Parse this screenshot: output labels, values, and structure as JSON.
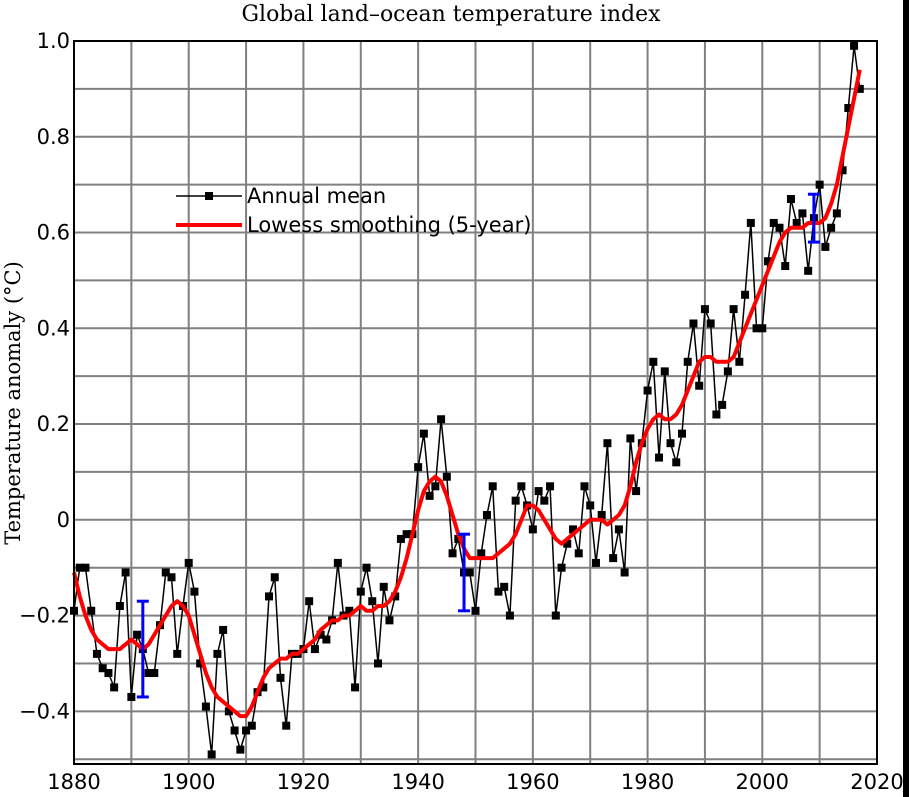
{
  "chart_data": {
    "type": "line",
    "title": "Global land–ocean temperature index",
    "xlabel": "",
    "ylabel": "Temperature anomaly (°C)",
    "xlim": [
      1880,
      2020
    ],
    "ylim": [
      -0.51,
      1.0
    ],
    "grid": true,
    "legend_position": "top-left",
    "x_ticks": [
      1880,
      1900,
      1920,
      1940,
      1960,
      1980,
      2000,
      2020
    ],
    "x_tick_labels": [
      "1880",
      "1900",
      "1920",
      "1940",
      "1960",
      "1980",
      "2000",
      "2020"
    ],
    "y_ticks": [
      -0.4,
      -0.2,
      0,
      0.2,
      0.4,
      0.6,
      0.8,
      1.0
    ],
    "y_tick_labels": [
      "−0.4",
      "−0.2",
      "0",
      "0.2",
      "0.4",
      "0.6",
      "0.8",
      "1.0"
    ],
    "x_start": 1880,
    "series": [
      {
        "name": "Annual mean",
        "color": "#000000",
        "marker": "square",
        "values": [
          -0.19,
          -0.1,
          -0.1,
          -0.19,
          -0.28,
          -0.31,
          -0.32,
          -0.35,
          -0.18,
          -0.11,
          -0.37,
          -0.24,
          -0.27,
          -0.32,
          -0.32,
          -0.22,
          -0.11,
          -0.12,
          -0.28,
          -0.18,
          -0.09,
          -0.15,
          -0.3,
          -0.39,
          -0.49,
          -0.28,
          -0.23,
          -0.4,
          -0.44,
          -0.48,
          -0.44,
          -0.43,
          -0.36,
          -0.35,
          -0.16,
          -0.12,
          -0.33,
          -0.43,
          -0.28,
          -0.28,
          -0.27,
          -0.17,
          -0.27,
          -0.24,
          -0.25,
          -0.21,
          -0.09,
          -0.2,
          -0.19,
          -0.35,
          -0.15,
          -0.1,
          -0.17,
          -0.3,
          -0.14,
          -0.21,
          -0.16,
          -0.04,
          -0.03,
          -0.03,
          0.11,
          0.18,
          0.05,
          0.07,
          0.21,
          0.09,
          -0.07,
          -0.04,
          -0.11,
          -0.11,
          -0.19,
          -0.07,
          0.01,
          0.07,
          -0.15,
          -0.14,
          -0.2,
          0.04,
          0.07,
          0.03,
          -0.02,
          0.06,
          0.04,
          0.07,
          -0.2,
          -0.1,
          -0.05,
          -0.02,
          -0.07,
          0.07,
          0.03,
          -0.09,
          0.01,
          0.16,
          -0.08,
          -0.02,
          -0.11,
          0.17,
          0.06,
          0.16,
          0.27,
          0.33,
          0.13,
          0.31,
          0.16,
          0.12,
          0.18,
          0.33,
          0.41,
          0.28,
          0.44,
          0.41,
          0.22,
          0.24,
          0.31,
          0.44,
          0.33,
          0.47,
          0.62,
          0.4,
          0.4,
          0.54,
          0.62,
          0.61,
          0.53,
          0.67,
          0.62,
          0.64,
          0.52,
          0.63,
          0.7,
          0.57,
          0.61,
          0.64,
          0.73,
          0.86,
          0.99,
          0.9
        ]
      },
      {
        "name": "Lowess smoothing (5-year)",
        "color": "#ff0000",
        "marker": "none",
        "values": [
          -0.11,
          -0.16,
          -0.2,
          -0.23,
          -0.25,
          -0.26,
          -0.27,
          -0.27,
          -0.27,
          -0.26,
          -0.25,
          -0.26,
          -0.27,
          -0.26,
          -0.24,
          -0.22,
          -0.2,
          -0.18,
          -0.17,
          -0.18,
          -0.2,
          -0.24,
          -0.28,
          -0.32,
          -0.35,
          -0.37,
          -0.38,
          -0.39,
          -0.4,
          -0.41,
          -0.41,
          -0.39,
          -0.36,
          -0.33,
          -0.31,
          -0.3,
          -0.29,
          -0.29,
          -0.28,
          -0.28,
          -0.27,
          -0.26,
          -0.25,
          -0.23,
          -0.22,
          -0.21,
          -0.21,
          -0.2,
          -0.2,
          -0.19,
          -0.18,
          -0.19,
          -0.19,
          -0.18,
          -0.18,
          -0.17,
          -0.15,
          -0.12,
          -0.08,
          -0.03,
          0.02,
          0.06,
          0.08,
          0.09,
          0.08,
          0.05,
          0.01,
          -0.03,
          -0.06,
          -0.08,
          -0.08,
          -0.08,
          -0.08,
          -0.08,
          -0.07,
          -0.06,
          -0.05,
          -0.03,
          0.0,
          0.03,
          0.03,
          0.02,
          0.0,
          -0.02,
          -0.04,
          -0.05,
          -0.04,
          -0.03,
          -0.02,
          -0.01,
          0.0,
          0.0,
          0.0,
          -0.01,
          0.0,
          0.01,
          0.03,
          0.07,
          0.12,
          0.16,
          0.19,
          0.21,
          0.22,
          0.21,
          0.21,
          0.22,
          0.24,
          0.27,
          0.3,
          0.33,
          0.34,
          0.34,
          0.33,
          0.33,
          0.33,
          0.34,
          0.37,
          0.4,
          0.43,
          0.46,
          0.49,
          0.52,
          0.55,
          0.58,
          0.6,
          0.61,
          0.61,
          0.61,
          0.62,
          0.62,
          0.62,
          0.63,
          0.66,
          0.7,
          0.76,
          0.82,
          0.88,
          0.94
        ]
      }
    ],
    "error_bars": [
      {
        "x": 1892,
        "low": -0.37,
        "high": -0.17
      },
      {
        "x": 1948,
        "low": -0.19,
        "high": -0.03
      },
      {
        "x": 2009,
        "low": 0.58,
        "high": 0.68
      }
    ],
    "error_bar_color": "#0000ff"
  }
}
